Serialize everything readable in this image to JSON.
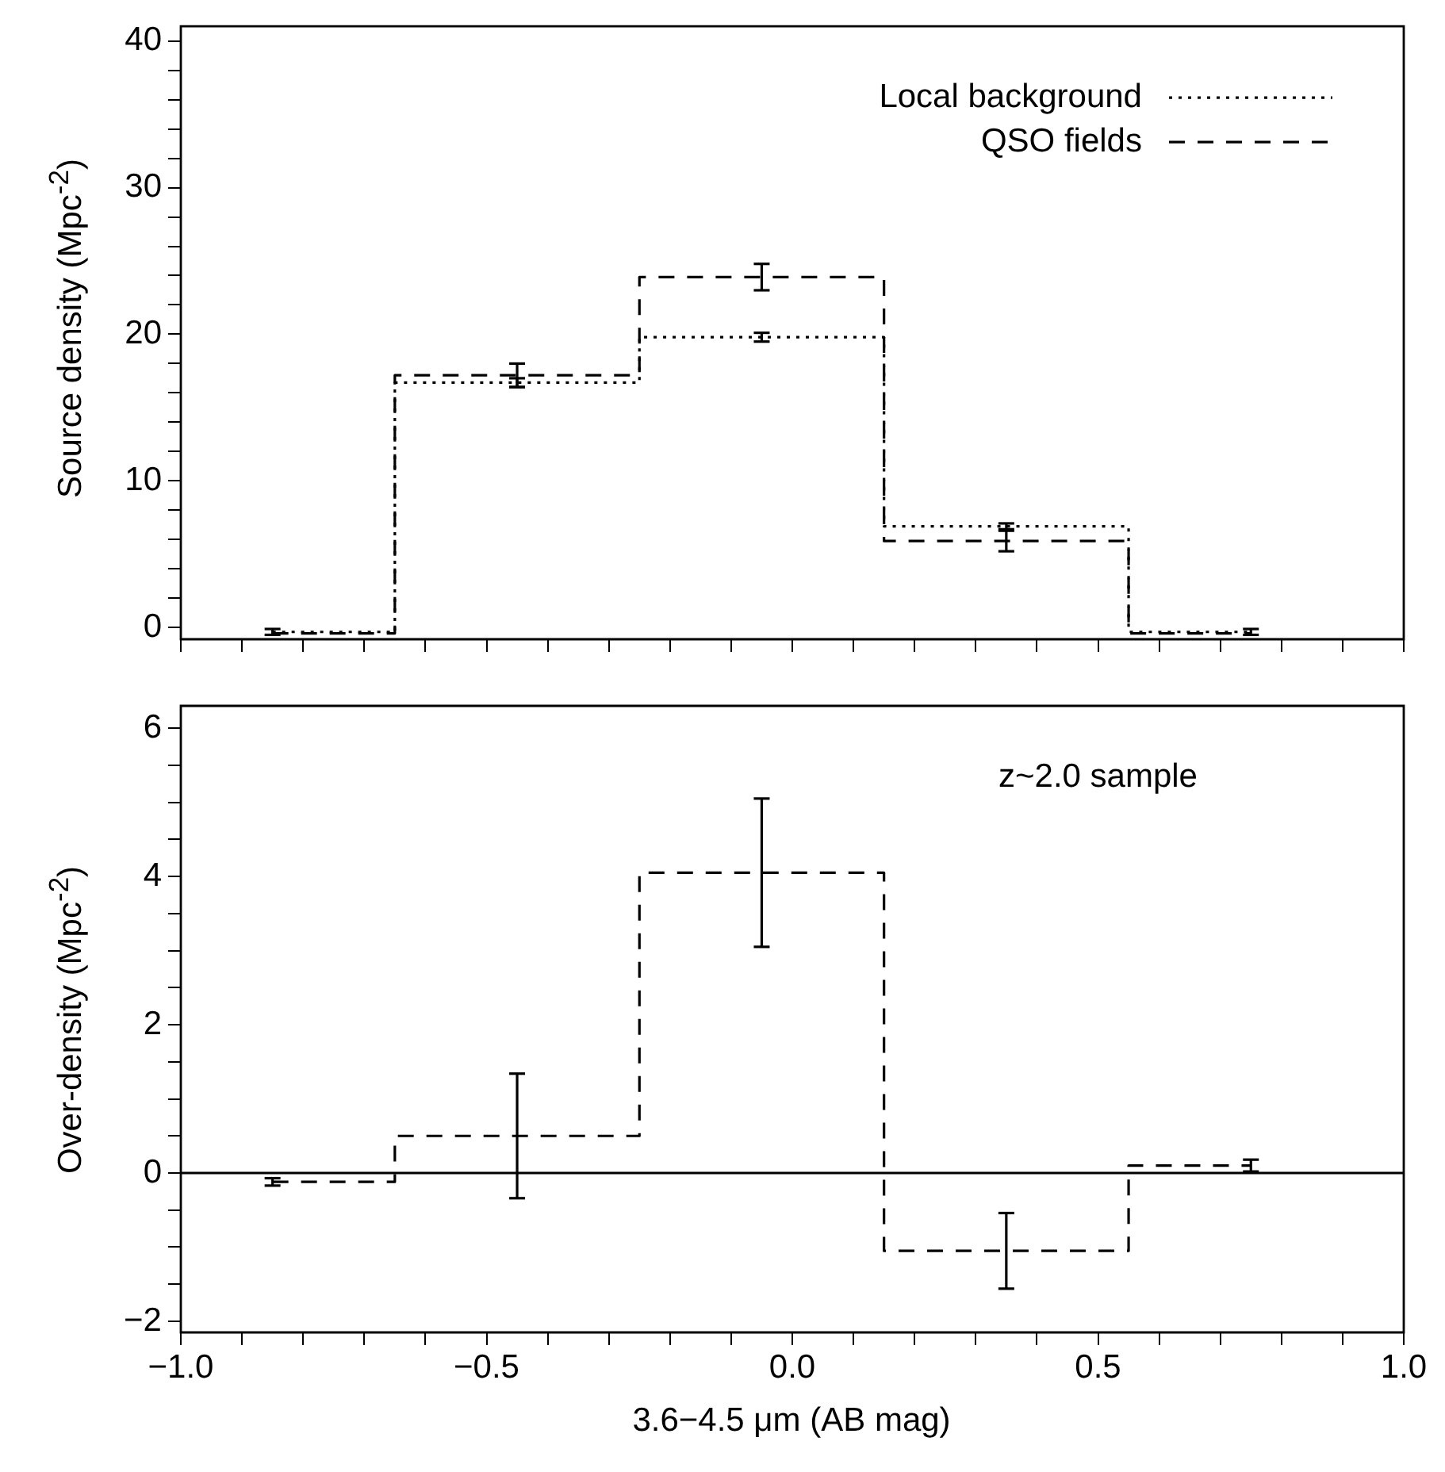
{
  "chart_data": [
    {
      "type": "step",
      "ylabel": "Source density (Mpc$^{-2}$)",
      "x": [
        -0.85,
        -0.45,
        -0.05,
        0.35,
        0.75
      ],
      "series": [
        {
          "name": "Local background",
          "color": "#000000",
          "line_style": "dotted",
          "values": [
            -0.3,
            16.7,
            19.8,
            6.9,
            -0.3
          ],
          "errors": [
            0.2,
            0.3,
            0.3,
            0.2,
            0.2
          ]
        },
        {
          "name": "QSO fields",
          "color": "#000000",
          "line_style": "dashed",
          "values": [
            -0.4,
            17.2,
            23.9,
            5.9,
            -0.4
          ],
          "errors": [
            null,
            0.8,
            0.9,
            0.7,
            null
          ]
        }
      ],
      "xlim": [
        -1,
        1
      ],
      "ylim": [
        -0.8,
        41
      ],
      "xticks": [
        -1,
        {
          "value": -0.9,
          "label": null
        },
        {
          "value": -0.8,
          "label": null
        },
        {
          "value": -0.7,
          "label": null
        },
        {
          "value": -0.6,
          "label": null
        },
        -0.5,
        {
          "value": -0.4,
          "label": null
        },
        {
          "value": -0.3,
          "label": null
        },
        {
          "value": -0.2,
          "label": null
        },
        {
          "value": -0.1,
          "label": null
        },
        0,
        {
          "value": 0.1,
          "label": null
        },
        {
          "value": 0.2,
          "label": null
        },
        {
          "value": 0.3,
          "label": null
        },
        {
          "value": 0.4,
          "label": null
        },
        0.5,
        {
          "value": 0.6,
          "label": null
        },
        {
          "value": 0.7,
          "label": null
        },
        {
          "value": 0.8,
          "label": null
        },
        {
          "value": 0.9,
          "label": null
        },
        1
      ],
      "yticks": [
        0,
        {
          "value": 2,
          "label": null
        },
        {
          "value": 4,
          "label": null
        },
        {
          "value": 6,
          "label": null
        },
        {
          "value": 8,
          "label": null
        },
        10,
        {
          "value": 12,
          "label": null
        },
        {
          "value": 14,
          "label": null
        },
        {
          "value": 16,
          "label": null
        },
        {
          "value": 18,
          "label": null
        },
        20,
        {
          "value": 22,
          "label": null
        },
        {
          "value": 24,
          "label": null
        },
        {
          "value": 26,
          "label": null
        },
        {
          "value": 28,
          "label": null
        },
        30,
        {
          "value": 32,
          "label": null
        },
        {
          "value": 34,
          "label": null
        },
        {
          "value": 36,
          "label": null
        },
        {
          "value": 38,
          "label": null
        },
        40
      ],
      "tick_labels": "y",
      "legend": "top right"
    },
    {
      "type": "step",
      "xlabel": "3.6−4.5 μm (AB mag)",
      "ylabel": "Over-density (Mpc$^{-2}$)",
      "annotations": [
        "z~2.0 sample"
      ],
      "x": [
        -0.85,
        -0.45,
        -0.05,
        0.35,
        0.75
      ],
      "series": [
        {
          "color": "#000000",
          "line_style": "dashed",
          "values": [
            -0.12,
            0.5,
            4.05,
            -1.05,
            0.1
          ],
          "errors": [
            0.05,
            0.84,
            1.0,
            0.51,
            0.08
          ]
        }
      ],
      "ref_lines": [
        {
          "axis": "y",
          "value": 0,
          "color": "#000000",
          "line_style": "solid"
        }
      ],
      "xlim": [
        -1,
        1
      ],
      "ylim": [
        -2.15,
        6.3
      ],
      "xticks": [
        {
          "value": -1,
          "label": "−1.0"
        },
        {
          "value": -0.9,
          "label": null
        },
        {
          "value": -0.8,
          "label": null
        },
        {
          "value": -0.7,
          "label": null
        },
        {
          "value": -0.6,
          "label": null
        },
        {
          "value": -0.5,
          "label": "−0.5"
        },
        {
          "value": -0.4,
          "label": null
        },
        {
          "value": -0.3,
          "label": null
        },
        {
          "value": -0.2,
          "label": null
        },
        {
          "value": -0.1,
          "label": null
        },
        {
          "value": 0,
          "label": "0.0"
        },
        {
          "value": 0.1,
          "label": null
        },
        {
          "value": 0.2,
          "label": null
        },
        {
          "value": 0.3,
          "label": null
        },
        {
          "value": 0.4,
          "label": null
        },
        {
          "value": 0.5,
          "label": "0.5"
        },
        {
          "value": 0.6,
          "label": null
        },
        {
          "value": 0.7,
          "label": null
        },
        {
          "value": 0.8,
          "label": null
        },
        {
          "value": 0.9,
          "label": null
        },
        {
          "value": 1,
          "label": "1.0"
        }
      ],
      "yticks": [
        {
          "value": -2,
          "label": "−2"
        },
        {
          "value": -1.5,
          "label": null
        },
        {
          "value": -1,
          "label": null
        },
        {
          "value": -0.5,
          "label": null
        },
        0,
        {
          "value": 0.5,
          "label": null
        },
        {
          "value": 1,
          "label": null
        },
        {
          "value": 1.5,
          "label": null
        },
        2,
        {
          "value": 2.5,
          "label": null
        },
        {
          "value": 3,
          "label": null
        },
        {
          "value": 3.5,
          "label": null
        },
        4,
        {
          "value": 4.5,
          "label": null
        },
        {
          "value": 5,
          "label": null
        },
        {
          "value": 5.5,
          "label": null
        },
        6
      ]
    }
  ]
}
